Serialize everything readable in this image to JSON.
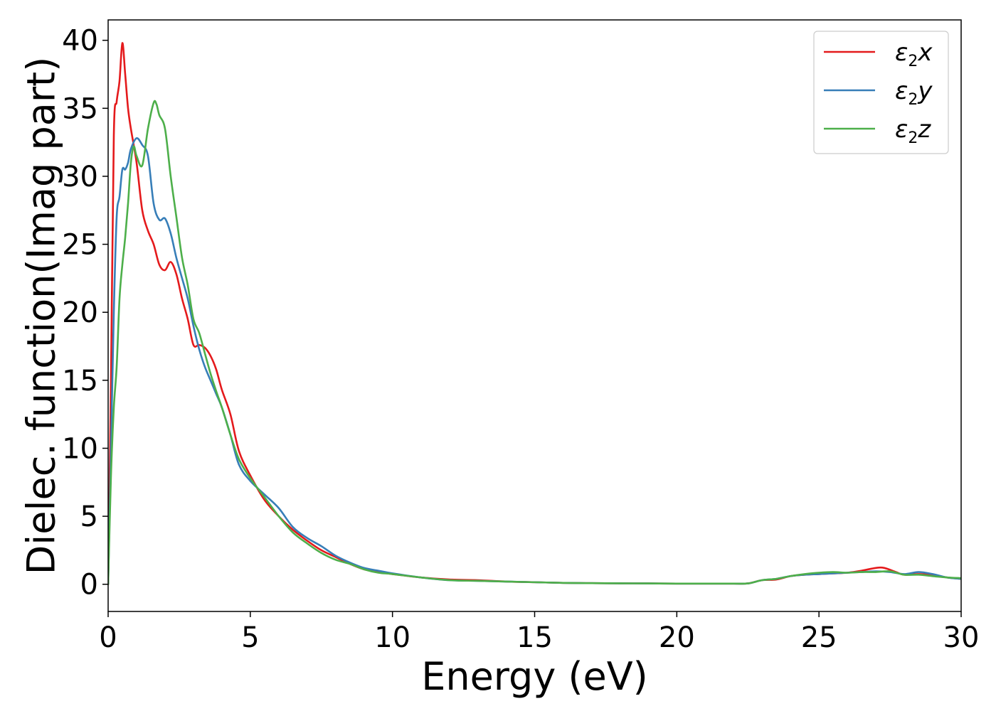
{
  "chart_data": {
    "type": "line",
    "title": "",
    "xlabel": "Energy (eV)",
    "ylabel": "Dielec. function(Imag part)",
    "xlim": [
      0,
      30
    ],
    "ylim": [
      -2,
      41.5
    ],
    "xticks": [
      0,
      5,
      10,
      15,
      20,
      25,
      30
    ],
    "yticks": [
      0,
      5,
      10,
      15,
      20,
      25,
      30,
      35,
      40
    ],
    "grid": false,
    "legend_placement": "top-right",
    "series": [
      {
        "name": "ε2x",
        "legend_base": "ε",
        "legend_sub": "2",
        "legend_var": "x",
        "color": "#e41a1c",
        "x": [
          0,
          0.1,
          0.2,
          0.3,
          0.4,
          0.5,
          0.6,
          0.7,
          0.8,
          1.0,
          1.2,
          1.4,
          1.6,
          1.8,
          2.0,
          2.2,
          2.4,
          2.6,
          2.8,
          3.0,
          3.2,
          3.4,
          3.6,
          3.8,
          4.0,
          4.3,
          4.6,
          5.0,
          5.5,
          6.0,
          6.5,
          7.0,
          7.5,
          8.0,
          8.5,
          9.0,
          9.5,
          10,
          11,
          12,
          13,
          14,
          15,
          16,
          17,
          18,
          19,
          20,
          21,
          22,
          22.5,
          23,
          23.5,
          24,
          24.5,
          25,
          25.5,
          26,
          26.5,
          27,
          27.3,
          27.7,
          28,
          28.5,
          29,
          29.5,
          30
        ],
        "values": [
          0,
          15,
          33,
          35.5,
          37,
          39.8,
          37.5,
          35,
          33.5,
          31,
          27.5,
          26,
          25,
          23.5,
          23.1,
          23.7,
          22.8,
          21,
          19.5,
          17.6,
          17.6,
          17.4,
          16.8,
          15.8,
          14.3,
          12.5,
          9.8,
          8.0,
          6.2,
          5.0,
          4.0,
          3.2,
          2.5,
          2.0,
          1.5,
          1.1,
          0.9,
          0.75,
          0.5,
          0.35,
          0.3,
          0.2,
          0.15,
          0.1,
          0.08,
          0.07,
          0.06,
          0.05,
          0.05,
          0.05,
          0.06,
          0.3,
          0.35,
          0.6,
          0.7,
          0.75,
          0.8,
          0.85,
          1.0,
          1.2,
          1.2,
          0.9,
          0.7,
          0.75,
          0.7,
          0.5,
          0.4
        ]
      },
      {
        "name": "ε2y",
        "legend_base": "ε",
        "legend_sub": "2",
        "legend_var": "y",
        "color": "#377eb8",
        "x": [
          0,
          0.1,
          0.2,
          0.3,
          0.4,
          0.5,
          0.6,
          0.7,
          0.8,
          1.0,
          1.2,
          1.4,
          1.6,
          1.8,
          2.0,
          2.2,
          2.4,
          2.6,
          2.8,
          3.0,
          3.2,
          3.4,
          3.6,
          3.8,
          4.0,
          4.3,
          4.6,
          5.0,
          5.5,
          6.0,
          6.5,
          7.0,
          7.5,
          8.0,
          8.5,
          9.0,
          9.5,
          10,
          11,
          12,
          13,
          14,
          15,
          16,
          17,
          18,
          19,
          20,
          21,
          22,
          22.5,
          23,
          23.5,
          24,
          24.5,
          25,
          25.5,
          26,
          26.5,
          27,
          27.5,
          28,
          28.5,
          29,
          29.5,
          30
        ],
        "values": [
          0,
          10,
          20,
          27,
          28.5,
          30.5,
          30.5,
          31,
          32,
          32.8,
          32.3,
          31.5,
          28,
          26.8,
          26.9,
          25.8,
          24,
          22.5,
          21,
          19,
          17.3,
          16,
          15,
          14,
          13,
          11,
          8.8,
          7.6,
          6.6,
          5.6,
          4.2,
          3.4,
          2.8,
          2.1,
          1.6,
          1.2,
          1.0,
          0.8,
          0.5,
          0.3,
          0.25,
          0.2,
          0.15,
          0.1,
          0.08,
          0.07,
          0.06,
          0.05,
          0.05,
          0.05,
          0.06,
          0.3,
          0.4,
          0.6,
          0.7,
          0.75,
          0.8,
          0.85,
          0.9,
          0.95,
          0.9,
          0.75,
          0.9,
          0.75,
          0.5,
          0.4
        ]
      },
      {
        "name": "ε2z",
        "legend_base": "ε",
        "legend_sub": "2",
        "legend_var": "z",
        "color": "#4daf4a",
        "x": [
          0,
          0.1,
          0.2,
          0.3,
          0.4,
          0.5,
          0.6,
          0.7,
          0.8,
          0.9,
          1.0,
          1.2,
          1.4,
          1.6,
          1.7,
          1.8,
          2.0,
          2.2,
          2.4,
          2.6,
          2.8,
          3.0,
          3.2,
          3.4,
          3.6,
          3.8,
          4.0,
          4.3,
          4.6,
          5.0,
          5.5,
          6.0,
          6.5,
          7.0,
          7.5,
          8.0,
          8.5,
          9.0,
          9.5,
          10,
          11,
          12,
          13,
          14,
          15,
          16,
          17,
          18,
          19,
          20,
          21,
          22,
          22.5,
          23,
          23.5,
          24,
          24.5,
          25,
          25.5,
          26,
          26.5,
          27,
          27.5,
          28,
          28.5,
          29,
          29.5,
          30
        ],
        "values": [
          0,
          8,
          13,
          16,
          21,
          23.5,
          25.5,
          28,
          31,
          32.2,
          31.5,
          30.8,
          33.5,
          35.4,
          35.3,
          34.5,
          33.5,
          30,
          27,
          24,
          22,
          19.5,
          18.5,
          17,
          15.5,
          14.2,
          13,
          11,
          9.2,
          7.8,
          6.4,
          5.0,
          3.8,
          3.0,
          2.3,
          1.8,
          1.5,
          1.1,
          0.85,
          0.75,
          0.5,
          0.3,
          0.25,
          0.2,
          0.15,
          0.1,
          0.08,
          0.07,
          0.06,
          0.05,
          0.05,
          0.05,
          0.06,
          0.3,
          0.4,
          0.6,
          0.75,
          0.85,
          0.9,
          0.85,
          0.9,
          0.9,
          0.95,
          0.7,
          0.7,
          0.6,
          0.5,
          0.45
        ]
      }
    ]
  }
}
